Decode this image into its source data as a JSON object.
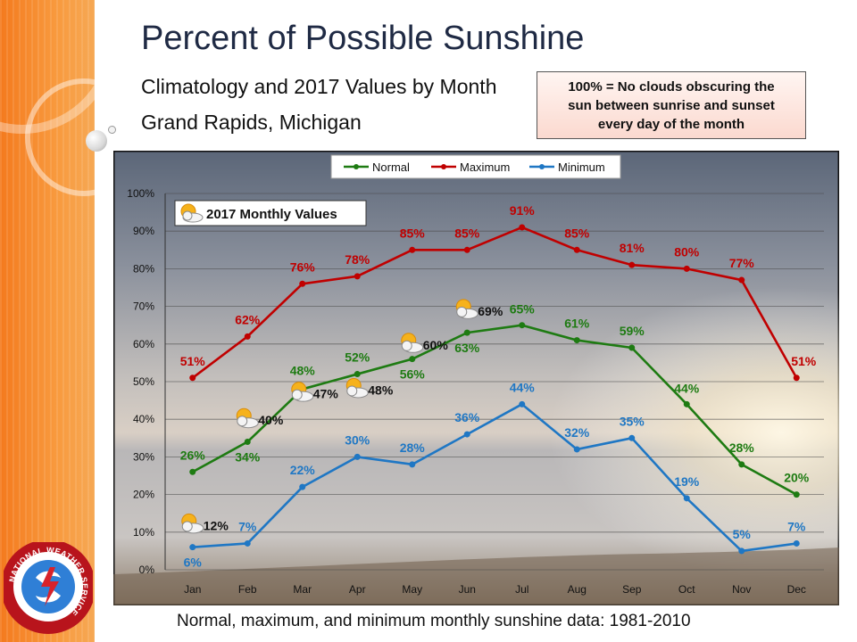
{
  "slide": {
    "title": "Percent of Possible Sunshine",
    "subtitle": "Climatology and 2017 Values by Month",
    "location": "Grand Rapids, Michigan",
    "note_lines": [
      "100% = No clouds obscuring the",
      "sun between sunrise and sunset",
      "every day of the month"
    ],
    "caption": "Normal, maximum, and minimum monthly sunshine data: 1981-2010",
    "logo_text": "NATIONAL WEATHER SERVICE"
  },
  "chart_data": {
    "type": "line",
    "categories": [
      "Jan",
      "Feb",
      "Mar",
      "Apr",
      "May",
      "Jun",
      "Jul",
      "Aug",
      "Sep",
      "Oct",
      "Nov",
      "Dec"
    ],
    "ylim": [
      0,
      100
    ],
    "yticks": [
      "0%",
      "10%",
      "20%",
      "30%",
      "40%",
      "50%",
      "60%",
      "70%",
      "80%",
      "90%",
      "100%"
    ],
    "grid": true,
    "legend_position": "top",
    "series": [
      {
        "name": "Normal",
        "color": "#1e7b12",
        "values": [
          26,
          34,
          48,
          52,
          56,
          63,
          65,
          61,
          59,
          44,
          28,
          20
        ],
        "labels": [
          "26%",
          "34%",
          "48%",
          "52%",
          "56%",
          "63%",
          "65%",
          "61%",
          "59%",
          "44%",
          "28%",
          "20%"
        ]
      },
      {
        "name": "Maximum",
        "color": "#c00000",
        "values": [
          51,
          62,
          76,
          78,
          85,
          85,
          91,
          85,
          81,
          80,
          77,
          51
        ],
        "labels": [
          "51%",
          "62%",
          "76%",
          "78%",
          "85%",
          "85%",
          "91%",
          "85%",
          "81%",
          "80%",
          "77%",
          "51%"
        ]
      },
      {
        "name": "Minimum",
        "color": "#1f77c4",
        "values": [
          6,
          7,
          22,
          30,
          28,
          36,
          44,
          32,
          35,
          19,
          5,
          7
        ],
        "labels": [
          "6%",
          "7%",
          "22%",
          "30%",
          "28%",
          "36%",
          "44%",
          "32%",
          "35%",
          "19%",
          "5%",
          "7%"
        ]
      }
    ],
    "annotations": {
      "title": "2017 Monthly Values",
      "icon": "partly-sunny-icon",
      "values": [
        {
          "month": "Jan",
          "value": 12,
          "label": "12%"
        },
        {
          "month": "Feb",
          "value": 40,
          "label": "40%"
        },
        {
          "month": "Mar",
          "value": 47,
          "label": "47%"
        },
        {
          "month": "Apr",
          "value": 48,
          "label": "48%"
        },
        {
          "month": "May",
          "value": 60,
          "label": "60%"
        },
        {
          "month": "Jun",
          "value": 69,
          "label": "69%"
        }
      ]
    }
  }
}
